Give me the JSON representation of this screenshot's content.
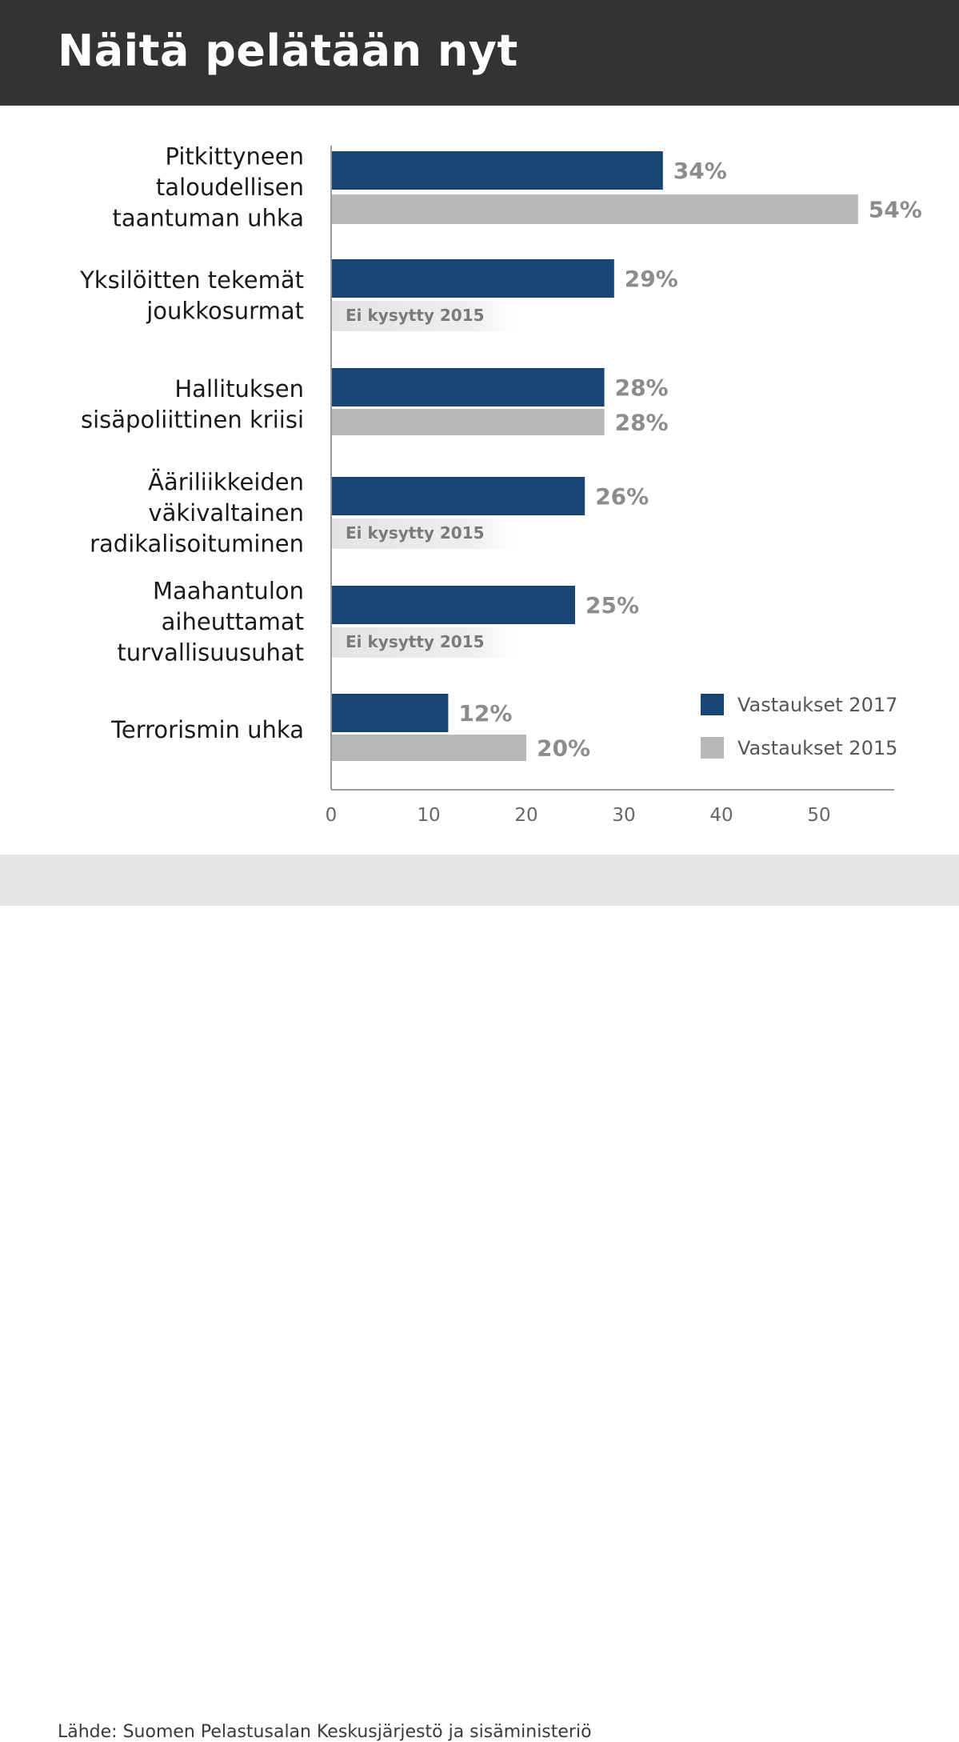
{
  "title": "Näitä pelätään nyt",
  "source": "Lähde: Suomen Pelastusalan Keskusjärjestö ja sisäministeriö",
  "colors": {
    "header_bg": "#333333",
    "series_2017": "#174574",
    "series_2015": "#b8b8b8",
    "value_label": "#8c8c8c"
  },
  "chart_data": {
    "type": "bar",
    "orientation": "horizontal",
    "categories": [
      [
        "Pitkittyneen",
        "taloudellisen",
        "taantuman uhka"
      ],
      [
        "Yksilöitten tekemät",
        "joukkosurmat"
      ],
      [
        "Hallituksen",
        "sisäpoliittinen kriisi"
      ],
      [
        "Ääriliikkeiden",
        "väkivaltainen",
        "radikalisoituminen"
      ],
      [
        "Maahantulon",
        "aiheuttamat",
        "turvallisuusuhat"
      ],
      [
        "Terrorismin uhka"
      ]
    ],
    "series": [
      {
        "name": "Vastaukset 2017",
        "color": "#174574",
        "values": [
          34,
          29,
          28,
          26,
          25,
          12
        ],
        "labels": [
          "34%",
          "29%",
          "28%",
          "26%",
          "25%",
          "12%"
        ]
      },
      {
        "name": "Vastaukset 2015",
        "color": "#b8b8b8",
        "values": [
          54,
          null,
          28,
          null,
          null,
          20
        ],
        "labels": [
          "54%",
          null,
          "28%",
          null,
          null,
          "20%"
        ]
      }
    ],
    "not_asked_label": "Ei kysytty 2015",
    "x_ticks": [
      0,
      10,
      20,
      30,
      40,
      50
    ],
    "xlim": [
      0,
      58
    ],
    "grid": false,
    "legend_position": "bottom-right"
  }
}
